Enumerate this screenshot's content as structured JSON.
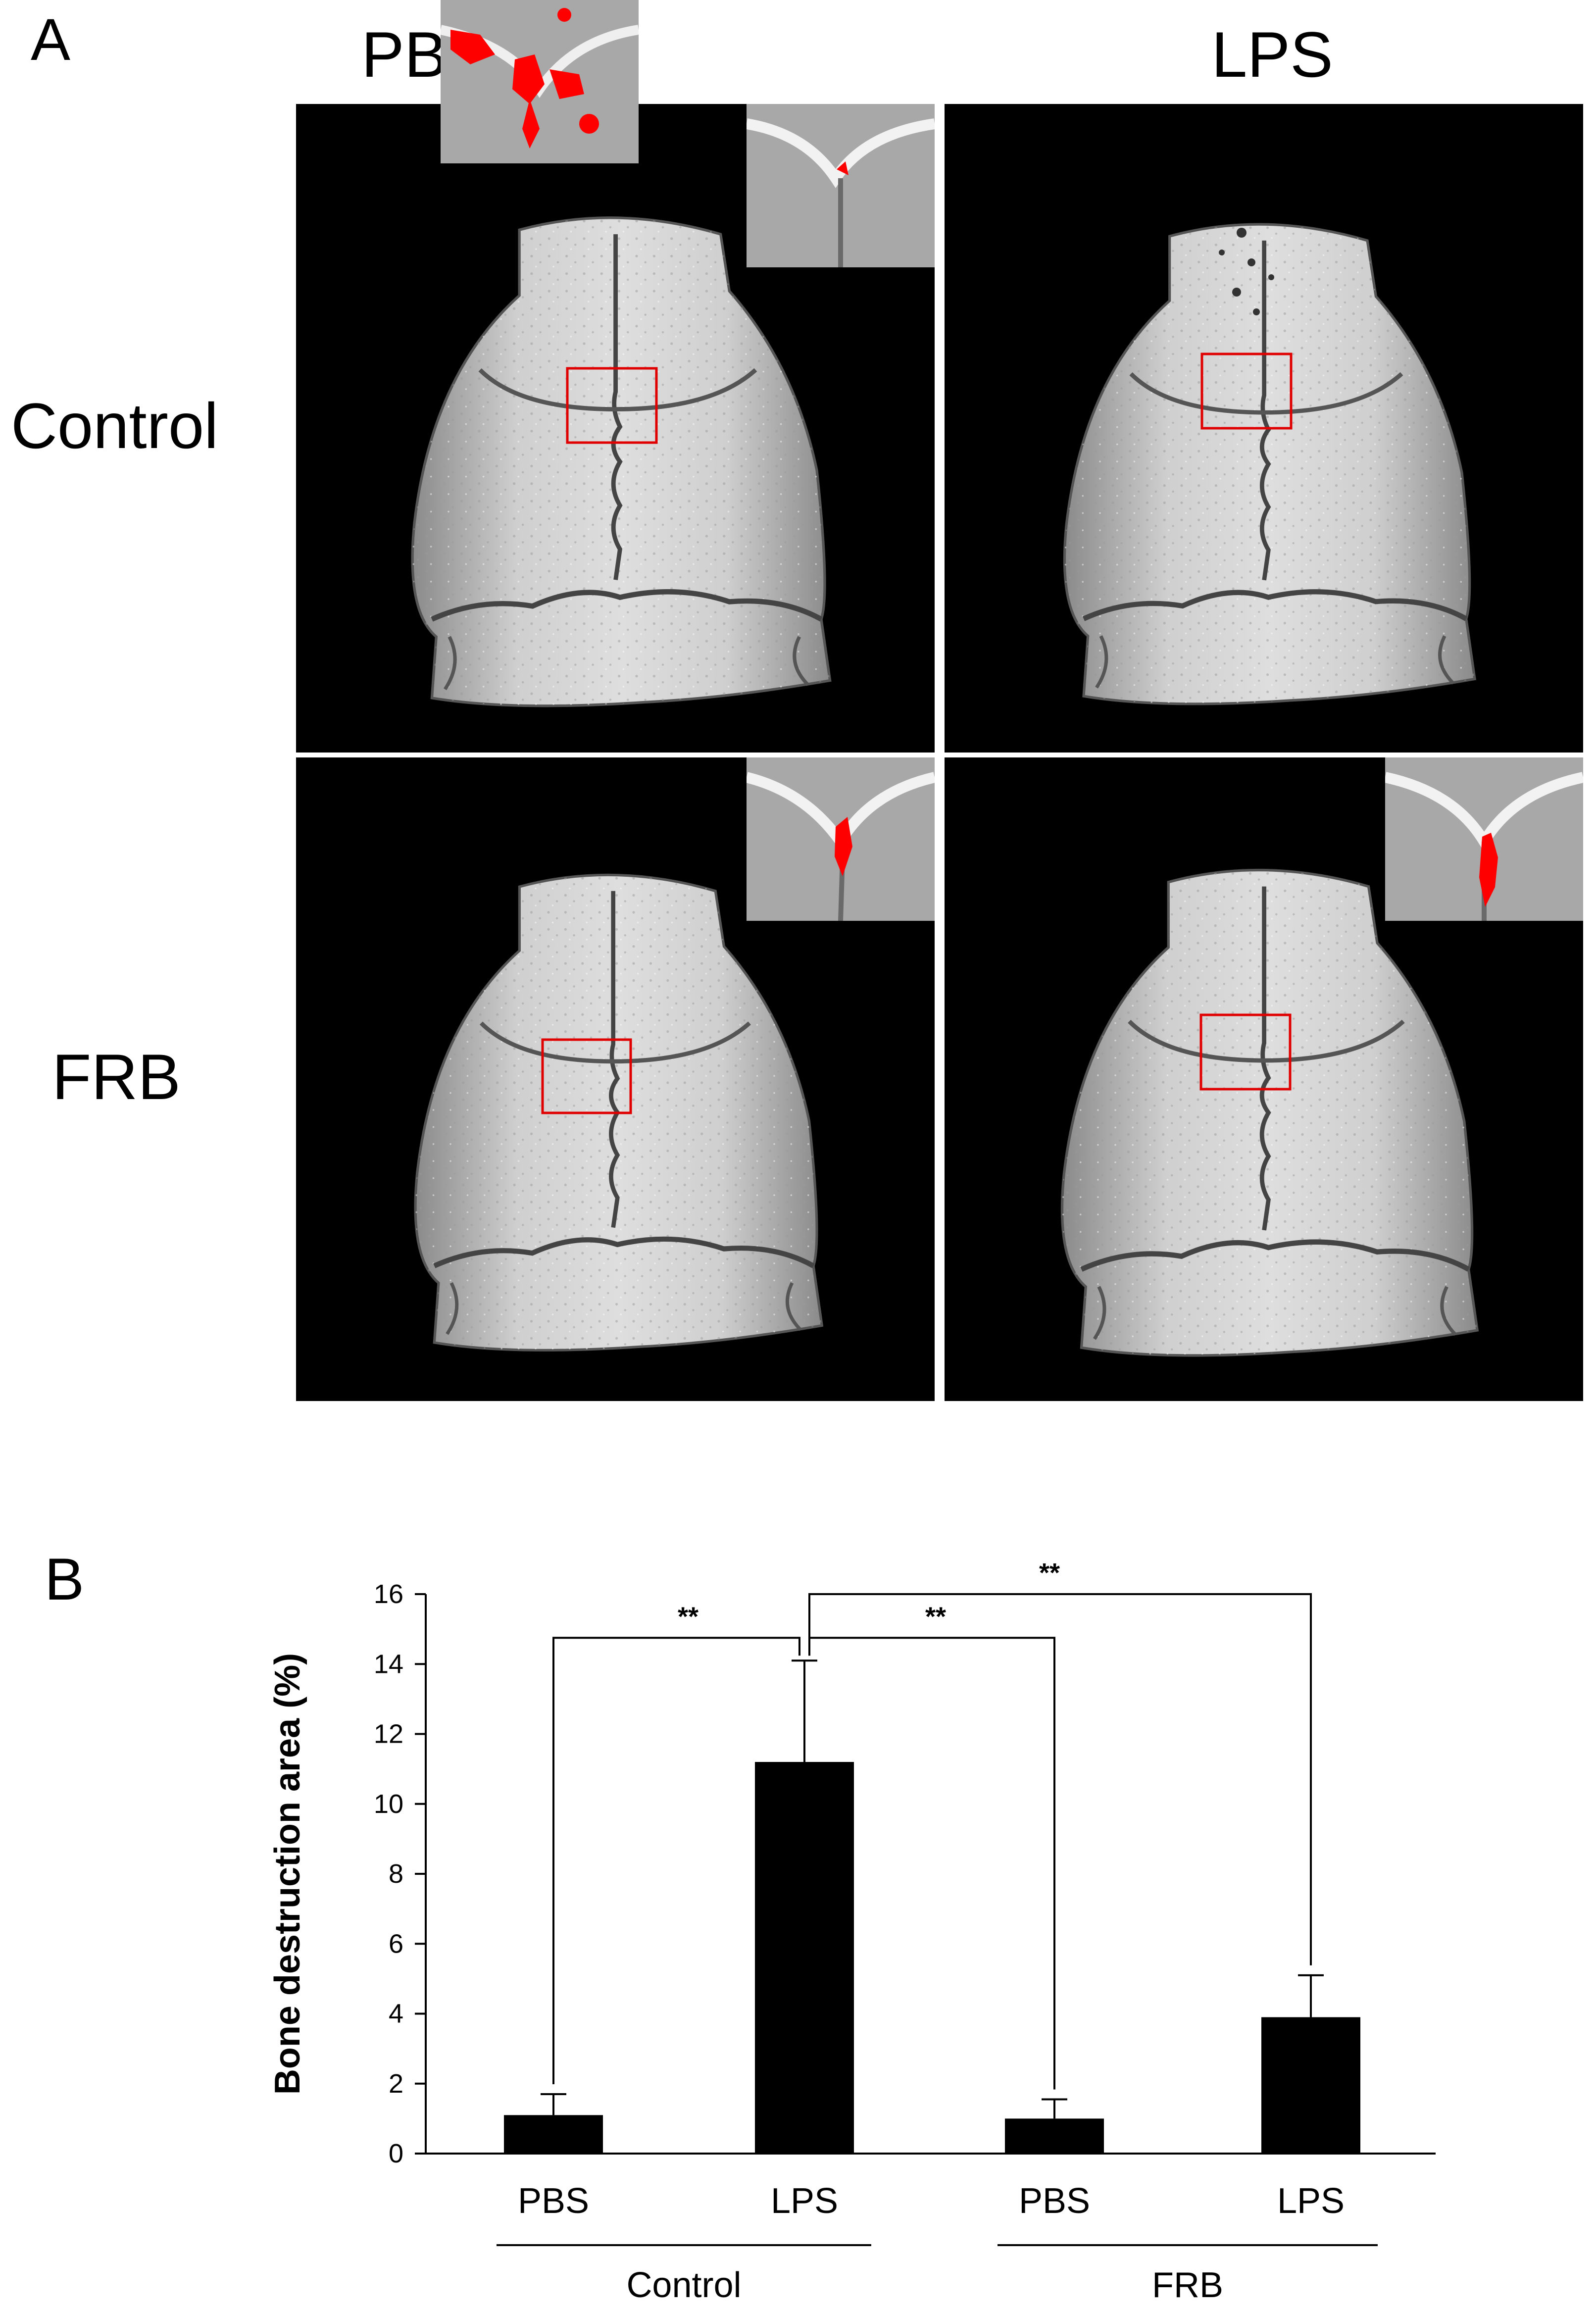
{
  "panel_a": {
    "letter": "A",
    "columns": [
      "PBS",
      "LPS"
    ],
    "rows": [
      "Control",
      "FRB"
    ],
    "tiles": [
      {
        "row": "Control",
        "col": "PBS",
        "lesion": "minimal"
      },
      {
        "row": "Control",
        "col": "LPS",
        "lesion": "extensive"
      },
      {
        "row": "FRB",
        "col": "PBS",
        "lesion": "minimal"
      },
      {
        "row": "FRB",
        "col": "LPS",
        "lesion": "mild"
      }
    ],
    "colors": {
      "background": "#000000",
      "bone": "#c8c8c8",
      "lesion": "#ff0000",
      "roi_box": "#e00000"
    }
  },
  "panel_b": {
    "letter": "B"
  },
  "chart_data": {
    "type": "bar",
    "categories": [
      "PBS",
      "LPS",
      "PBS",
      "LPS"
    ],
    "groups": [
      {
        "label": "Control",
        "categories": [
          "PBS",
          "LPS"
        ]
      },
      {
        "label": "FRB",
        "categories": [
          "PBS",
          "LPS"
        ]
      }
    ],
    "values": [
      1.1,
      11.2,
      1.0,
      3.9
    ],
    "errors": [
      0.6,
      2.9,
      0.55,
      1.2
    ],
    "ylabel": "Bone destruction area (%)",
    "ylim": [
      0,
      16
    ],
    "yticks": [
      0,
      2,
      4,
      6,
      8,
      10,
      12,
      14,
      16
    ],
    "bar_color": "#000000",
    "significance": [
      {
        "from": 1,
        "to": 0,
        "label": "**"
      },
      {
        "from": 1,
        "to": 2,
        "label": "**"
      },
      {
        "from": 1,
        "to": 3,
        "label": "**"
      }
    ],
    "grid": false
  }
}
